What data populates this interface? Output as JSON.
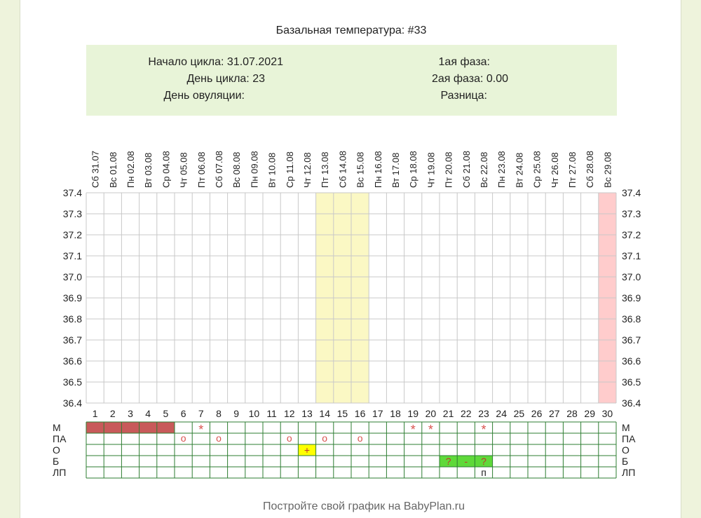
{
  "colors": {
    "page_bg": "#eef3dc",
    "info_bg": "#e8f4d8",
    "grid_line": "#c8c8c8",
    "rows_line": "#2e7d32",
    "highlight_fertile": "#fbf8c4",
    "highlight_end": "#ffcccc",
    "menstruation_fill": "#c85a5a",
    "mark_color": "#d9534f",
    "ovulation_test_fill": "#ffff00",
    "sex_test_fill": "#5fd93a"
  },
  "header": {
    "title": "Базальная температура: #33",
    "cycle_start": "Начало цикла: 31.07.2021",
    "cycle_day": "День цикла: 23",
    "ovulation_day": "День овуляции:",
    "phase1": "1ая фаза:",
    "phase2": "2ая фаза: 0.00",
    "difference": "Разница:"
  },
  "chart_data": {
    "type": "line",
    "title": "Базальная температура: #33",
    "dates": [
      "Сб 31.07",
      "Вс 01.08",
      "Пн 02.08",
      "Вт 03.08",
      "Ср 04.08",
      "Чт 05.08",
      "Пт 06.08",
      "Сб 07.08",
      "Вс 08.08",
      "Пн 09.08",
      "Вт 10.08",
      "Ср 11.08",
      "Чт 12.08",
      "Пт 13.08",
      "Сб 14.08",
      "Вс 15.08",
      "Пн 16.08",
      "Вт 17.08",
      "Ср 18.08",
      "Чт 19.08",
      "Пт 20.08",
      "Сб 21.08",
      "Вс 22.08",
      "Пн 23.08",
      "Вт 24.08",
      "Ср 25.08",
      "Чт 26.08",
      "Пт 27.08",
      "Сб 28.08",
      "Вс 29.08"
    ],
    "days": [
      "1",
      "2",
      "3",
      "4",
      "5",
      "6",
      "7",
      "8",
      "9",
      "10",
      "11",
      "12",
      "13",
      "14",
      "15",
      "16",
      "17",
      "18",
      "19",
      "20",
      "21",
      "22",
      "23",
      "24",
      "25",
      "26",
      "27",
      "28",
      "29",
      "30"
    ],
    "y_ticks": [
      "37.4",
      "37.3",
      "37.2",
      "37.1",
      "37.0",
      "36.9",
      "36.8",
      "36.7",
      "36.6",
      "36.5",
      "36.4"
    ],
    "ylim": [
      36.4,
      37.4
    ],
    "series": [],
    "highlight_fertile_days": [
      14,
      16
    ],
    "highlight_end_day": 30,
    "grid": true
  },
  "rows": {
    "labels": [
      "М",
      "ПА",
      "О",
      "Б",
      "ЛП"
    ],
    "menstruation_days": [
      1,
      2,
      3,
      4,
      5
    ],
    "m_marks": [
      {
        "day": 7,
        "symbol": "*"
      },
      {
        "day": 19,
        "symbol": "*"
      },
      {
        "day": 20,
        "symbol": "*"
      },
      {
        "day": 23,
        "symbol": "*"
      }
    ],
    "pa_marks": [
      {
        "day": 6,
        "symbol": "o"
      },
      {
        "day": 8,
        "symbol": "o"
      },
      {
        "day": 12,
        "symbol": "o"
      },
      {
        "day": 14,
        "symbol": "o"
      },
      {
        "day": 16,
        "symbol": "o"
      }
    ],
    "o_marks": [
      {
        "day": 13,
        "symbol": "+"
      }
    ],
    "b_marks": [
      {
        "day": 21,
        "symbol": "?"
      },
      {
        "day": 22,
        "symbol": "-"
      },
      {
        "day": 23,
        "symbol": "?"
      }
    ],
    "lp_marks": [
      {
        "day": 23,
        "symbol": "п"
      }
    ]
  },
  "footer": {
    "text": "Постройте свой график на BabyPlan.ru"
  }
}
